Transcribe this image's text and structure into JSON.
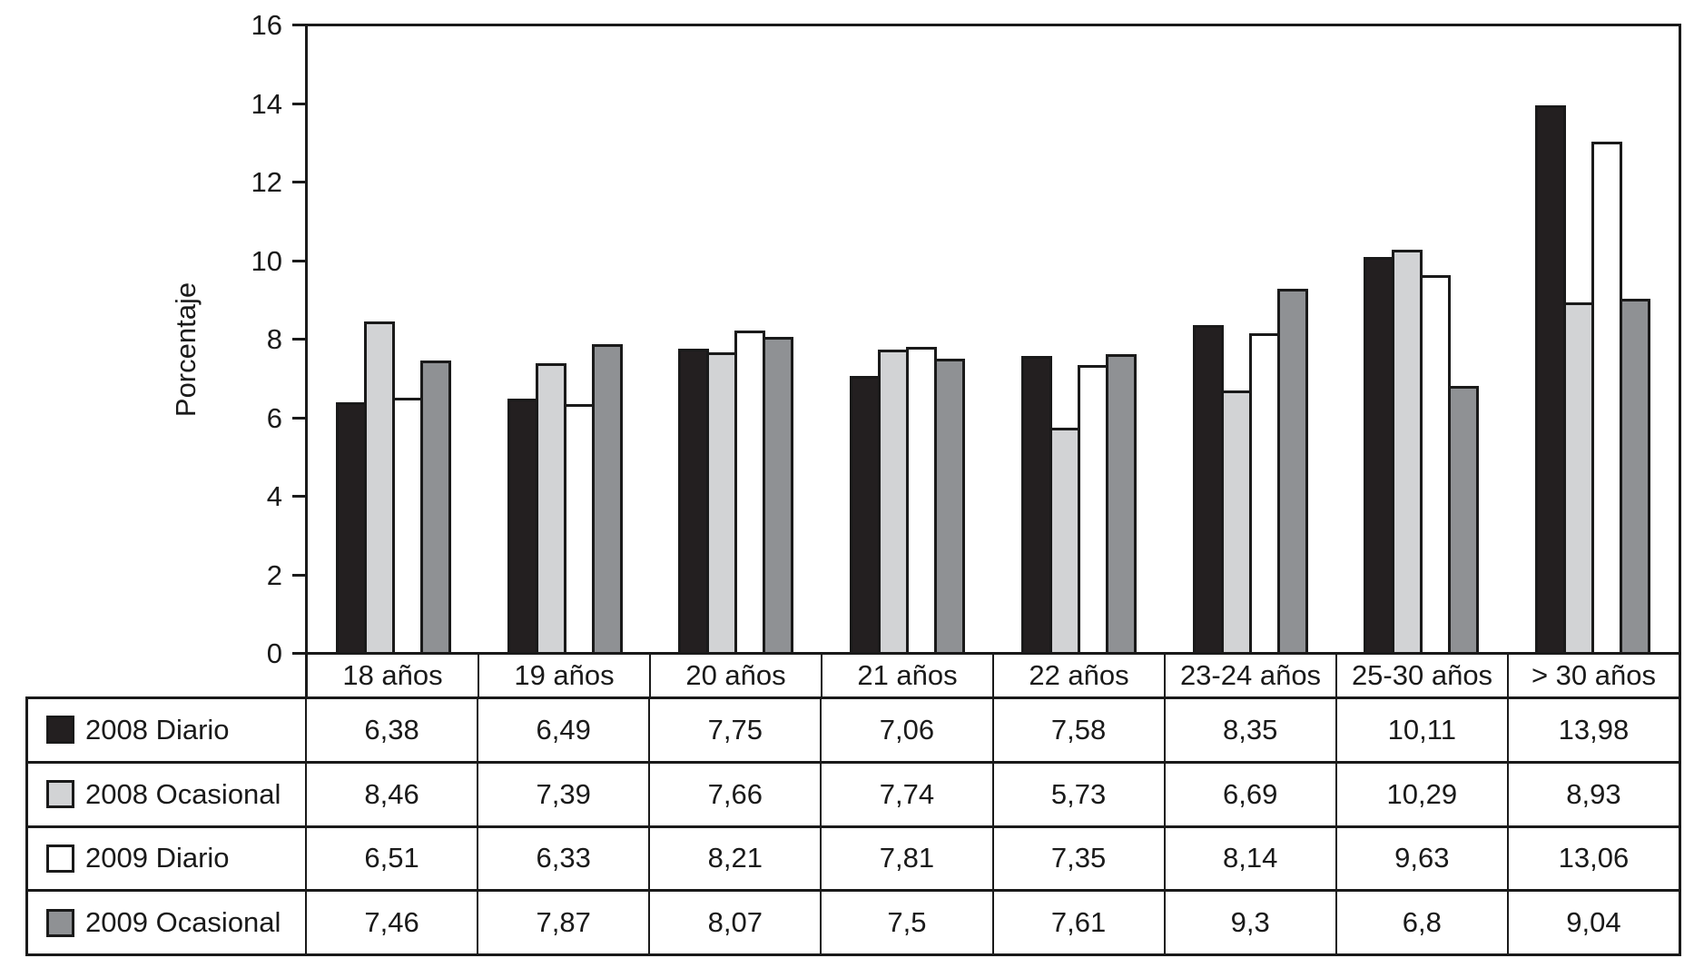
{
  "figure": {
    "background": "#ffffff",
    "axis_color": "#1a1a1a"
  },
  "chart_data": {
    "type": "bar",
    "title": "",
    "xlabel": "",
    "ylabel": "Porcentaje",
    "ylim": [
      0,
      16
    ],
    "yticks": [
      0,
      2,
      4,
      6,
      8,
      10,
      12,
      14,
      16
    ],
    "grid": false,
    "legend_position": "table-left-column",
    "categories": [
      "18 años",
      "19 años",
      "20 años",
      "21 años",
      "22 años",
      "23-24 años",
      "25-30 años",
      "> 30 años"
    ],
    "series": [
      {
        "name": "2008 Diario",
        "color": "#231f20",
        "swatch": "black-square",
        "values": [
          6.38,
          6.49,
          7.75,
          7.06,
          7.58,
          8.35,
          10.11,
          13.98
        ],
        "labels": [
          "6,38",
          "6,49",
          "7,75",
          "7,06",
          "7,58",
          "8,35",
          "10,11",
          "13,98"
        ]
      },
      {
        "name": "2008 Ocasional",
        "color": "#d2d3d5",
        "swatch": "light-gray-square",
        "values": [
          8.46,
          7.39,
          7.66,
          7.74,
          5.73,
          6.69,
          10.29,
          8.93
        ],
        "labels": [
          "8,46",
          "7,39",
          "7,66",
          "7,74",
          "5,73",
          "6,69",
          "10,29",
          "8,93"
        ]
      },
      {
        "name": "2009 Diario",
        "color": "#ffffff",
        "swatch": "white-square",
        "values": [
          6.51,
          6.33,
          8.21,
          7.81,
          7.35,
          8.14,
          9.63,
          13.06
        ],
        "labels": [
          "6,51",
          "6,33",
          "8,21",
          "7,81",
          "7,35",
          "8,14",
          "9,63",
          "13,06"
        ]
      },
      {
        "name": "2009 Ocasional",
        "color": "#8f9194",
        "swatch": "dark-gray-square",
        "values": [
          7.46,
          7.87,
          8.07,
          7.5,
          7.61,
          9.3,
          6.8,
          9.04
        ],
        "labels": [
          "7,46",
          "7,87",
          "8,07",
          "7,5",
          "7,61",
          "9,3",
          "6,8",
          "9,04"
        ]
      }
    ]
  }
}
